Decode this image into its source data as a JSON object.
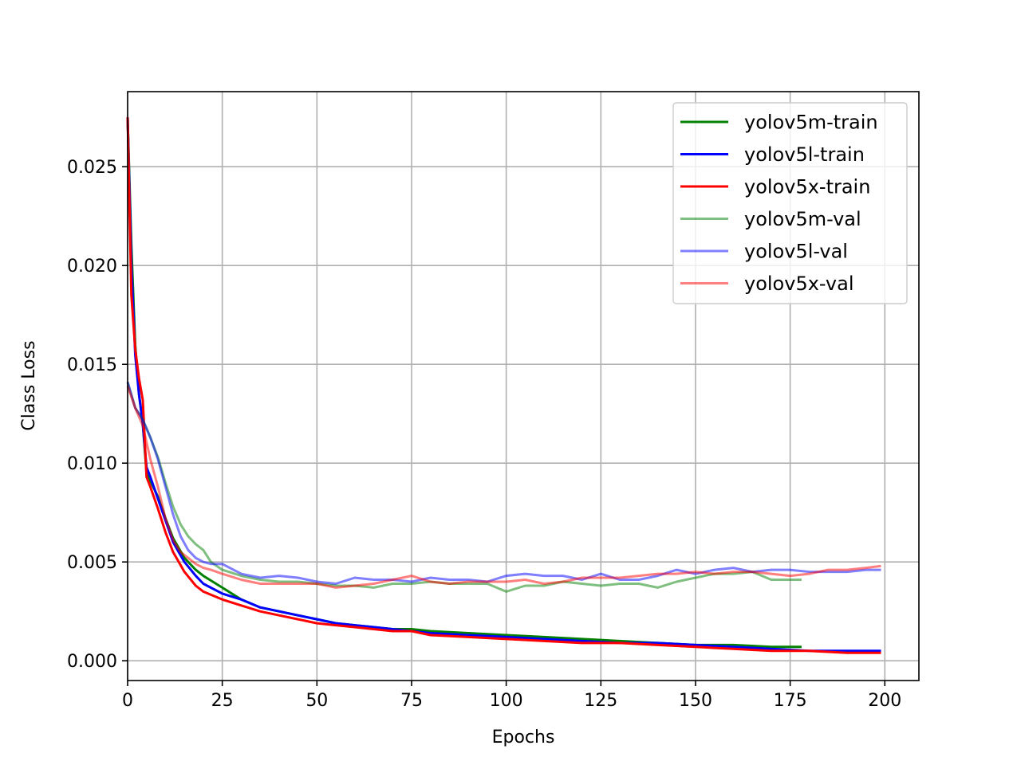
{
  "chart_data": {
    "type": "line",
    "title": "",
    "xlabel": "Epochs",
    "ylabel": "Class Loss",
    "xlim": [
      0,
      209
    ],
    "ylim": [
      -0.001,
      0.0288
    ],
    "xticks": [
      0,
      25,
      50,
      75,
      100,
      125,
      150,
      175,
      200
    ],
    "xtick_labels": [
      "0",
      "25",
      "50",
      "75",
      "100",
      "125",
      "150",
      "175",
      "200"
    ],
    "yticks": [
      0.0,
      0.005,
      0.01,
      0.015,
      0.02,
      0.025
    ],
    "ytick_labels": [
      "0.000",
      "0.005",
      "0.010",
      "0.015",
      "0.020",
      "0.025"
    ],
    "grid": true,
    "legend_position": "top-right",
    "series": [
      {
        "name": "yolov5m-train",
        "color": "#008000",
        "opacity": 1,
        "x": [
          0,
          1,
          2,
          3,
          4,
          5,
          6,
          8,
          10,
          12,
          15,
          18,
          20,
          25,
          30,
          35,
          40,
          45,
          50,
          55,
          60,
          65,
          70,
          75,
          80,
          90,
          100,
          110,
          120,
          130,
          140,
          150,
          160,
          170,
          178
        ],
        "y": [
          0.0275,
          0.021,
          0.016,
          0.0135,
          0.012,
          0.0095,
          0.0091,
          0.0083,
          0.0072,
          0.0062,
          0.0052,
          0.0046,
          0.0043,
          0.0037,
          0.0031,
          0.0027,
          0.0025,
          0.0023,
          0.0021,
          0.0019,
          0.0018,
          0.0017,
          0.0016,
          0.0016,
          0.0015,
          0.0014,
          0.0013,
          0.0012,
          0.0011,
          0.001,
          0.0009,
          0.0008,
          0.0008,
          0.0007,
          0.0007
        ]
      },
      {
        "name": "yolov5l-train",
        "color": "#0000ff",
        "opacity": 1,
        "x": [
          0,
          1,
          2,
          3,
          4,
          5,
          6,
          8,
          10,
          12,
          15,
          18,
          20,
          25,
          30,
          35,
          40,
          45,
          50,
          55,
          60,
          65,
          70,
          75,
          80,
          90,
          100,
          110,
          120,
          130,
          140,
          150,
          160,
          170,
          180,
          190,
          199
        ],
        "y": [
          0.0275,
          0.02,
          0.0155,
          0.0135,
          0.012,
          0.0098,
          0.0093,
          0.0082,
          0.0071,
          0.006,
          0.005,
          0.0043,
          0.0039,
          0.0034,
          0.0031,
          0.0027,
          0.0025,
          0.0023,
          0.0021,
          0.0019,
          0.0018,
          0.0017,
          0.0016,
          0.0015,
          0.0014,
          0.0013,
          0.0012,
          0.0011,
          0.001,
          0.0009,
          0.0009,
          0.0008,
          0.0007,
          0.0006,
          0.0005,
          0.0005,
          0.0005
        ]
      },
      {
        "name": "yolov5x-train",
        "color": "#ff0000",
        "opacity": 1,
        "x": [
          0,
          1,
          2,
          3,
          4,
          5,
          6,
          8,
          10,
          12,
          15,
          18,
          20,
          25,
          30,
          35,
          40,
          45,
          50,
          55,
          60,
          65,
          70,
          75,
          80,
          90,
          100,
          110,
          120,
          130,
          140,
          150,
          160,
          170,
          180,
          190,
          199
        ],
        "y": [
          0.0275,
          0.0185,
          0.0158,
          0.0143,
          0.0132,
          0.0093,
          0.0088,
          0.0077,
          0.0065,
          0.0055,
          0.0045,
          0.0038,
          0.0035,
          0.0031,
          0.0028,
          0.0025,
          0.0023,
          0.0021,
          0.0019,
          0.0018,
          0.0017,
          0.0016,
          0.0015,
          0.0015,
          0.0013,
          0.0012,
          0.0011,
          0.001,
          0.0009,
          0.0009,
          0.0008,
          0.0007,
          0.0006,
          0.0005,
          0.0005,
          0.0004,
          0.0004
        ]
      },
      {
        "name": "yolov5m-val",
        "color": "#008000",
        "opacity": 0.5,
        "x": [
          0,
          2,
          4,
          6,
          8,
          10,
          12,
          14,
          16,
          18,
          20,
          22,
          25,
          30,
          35,
          40,
          45,
          50,
          55,
          60,
          65,
          70,
          75,
          80,
          85,
          90,
          95,
          100,
          105,
          110,
          115,
          120,
          125,
          130,
          135,
          140,
          145,
          150,
          155,
          160,
          165,
          170,
          175,
          178
        ],
        "y": [
          0.0141,
          0.0128,
          0.0122,
          0.0113,
          0.0103,
          0.009,
          0.0078,
          0.0069,
          0.0063,
          0.0059,
          0.0056,
          0.005,
          0.0046,
          0.0043,
          0.0041,
          0.004,
          0.004,
          0.0039,
          0.0038,
          0.0038,
          0.0037,
          0.0039,
          0.0039,
          0.004,
          0.0039,
          0.0039,
          0.0039,
          0.0035,
          0.0038,
          0.0038,
          0.004,
          0.0039,
          0.0038,
          0.0039,
          0.0039,
          0.0037,
          0.004,
          0.0042,
          0.0044,
          0.0044,
          0.0045,
          0.0041,
          0.0041,
          0.0041
        ]
      },
      {
        "name": "yolov5l-val",
        "color": "#0000ff",
        "opacity": 0.5,
        "x": [
          0,
          2,
          4,
          6,
          8,
          10,
          12,
          14,
          16,
          18,
          20,
          22,
          25,
          30,
          35,
          40,
          45,
          50,
          55,
          60,
          65,
          70,
          75,
          80,
          85,
          90,
          95,
          100,
          105,
          110,
          115,
          120,
          125,
          130,
          135,
          140,
          145,
          150,
          155,
          160,
          165,
          170,
          175,
          180,
          185,
          190,
          195,
          199
        ],
        "y": [
          0.0141,
          0.0128,
          0.0122,
          0.0113,
          0.0102,
          0.0088,
          0.0074,
          0.0063,
          0.0056,
          0.0052,
          0.005,
          0.0049,
          0.0049,
          0.0044,
          0.0042,
          0.0043,
          0.0042,
          0.004,
          0.0039,
          0.0042,
          0.0041,
          0.0041,
          0.004,
          0.0042,
          0.0041,
          0.0041,
          0.004,
          0.0043,
          0.0044,
          0.0043,
          0.0043,
          0.0041,
          0.0044,
          0.0041,
          0.0041,
          0.0043,
          0.0046,
          0.0044,
          0.0046,
          0.0047,
          0.0045,
          0.0046,
          0.0046,
          0.0045,
          0.0045,
          0.0045,
          0.0046,
          0.0046
        ]
      },
      {
        "name": "yolov5x-val",
        "color": "#ff0000",
        "opacity": 0.5,
        "x": [
          0,
          2,
          4,
          6,
          8,
          10,
          12,
          14,
          16,
          18,
          20,
          22,
          25,
          30,
          35,
          40,
          45,
          50,
          55,
          60,
          65,
          70,
          75,
          80,
          85,
          90,
          95,
          100,
          105,
          110,
          115,
          120,
          125,
          130,
          135,
          140,
          145,
          150,
          155,
          160,
          165,
          170,
          175,
          180,
          185,
          190,
          195,
          199
        ],
        "y": [
          0.0139,
          0.0128,
          0.0119,
          0.0102,
          0.0088,
          0.0072,
          0.0061,
          0.0055,
          0.0052,
          0.0049,
          0.0047,
          0.0046,
          0.0044,
          0.0041,
          0.0039,
          0.0039,
          0.0039,
          0.0039,
          0.0037,
          0.0038,
          0.0039,
          0.0041,
          0.0043,
          0.004,
          0.0039,
          0.004,
          0.004,
          0.004,
          0.0041,
          0.0039,
          0.004,
          0.0042,
          0.0042,
          0.0042,
          0.0043,
          0.0044,
          0.0044,
          0.0045,
          0.0044,
          0.0045,
          0.0045,
          0.0044,
          0.0043,
          0.0044,
          0.0046,
          0.0046,
          0.0047,
          0.0048
        ]
      }
    ]
  }
}
